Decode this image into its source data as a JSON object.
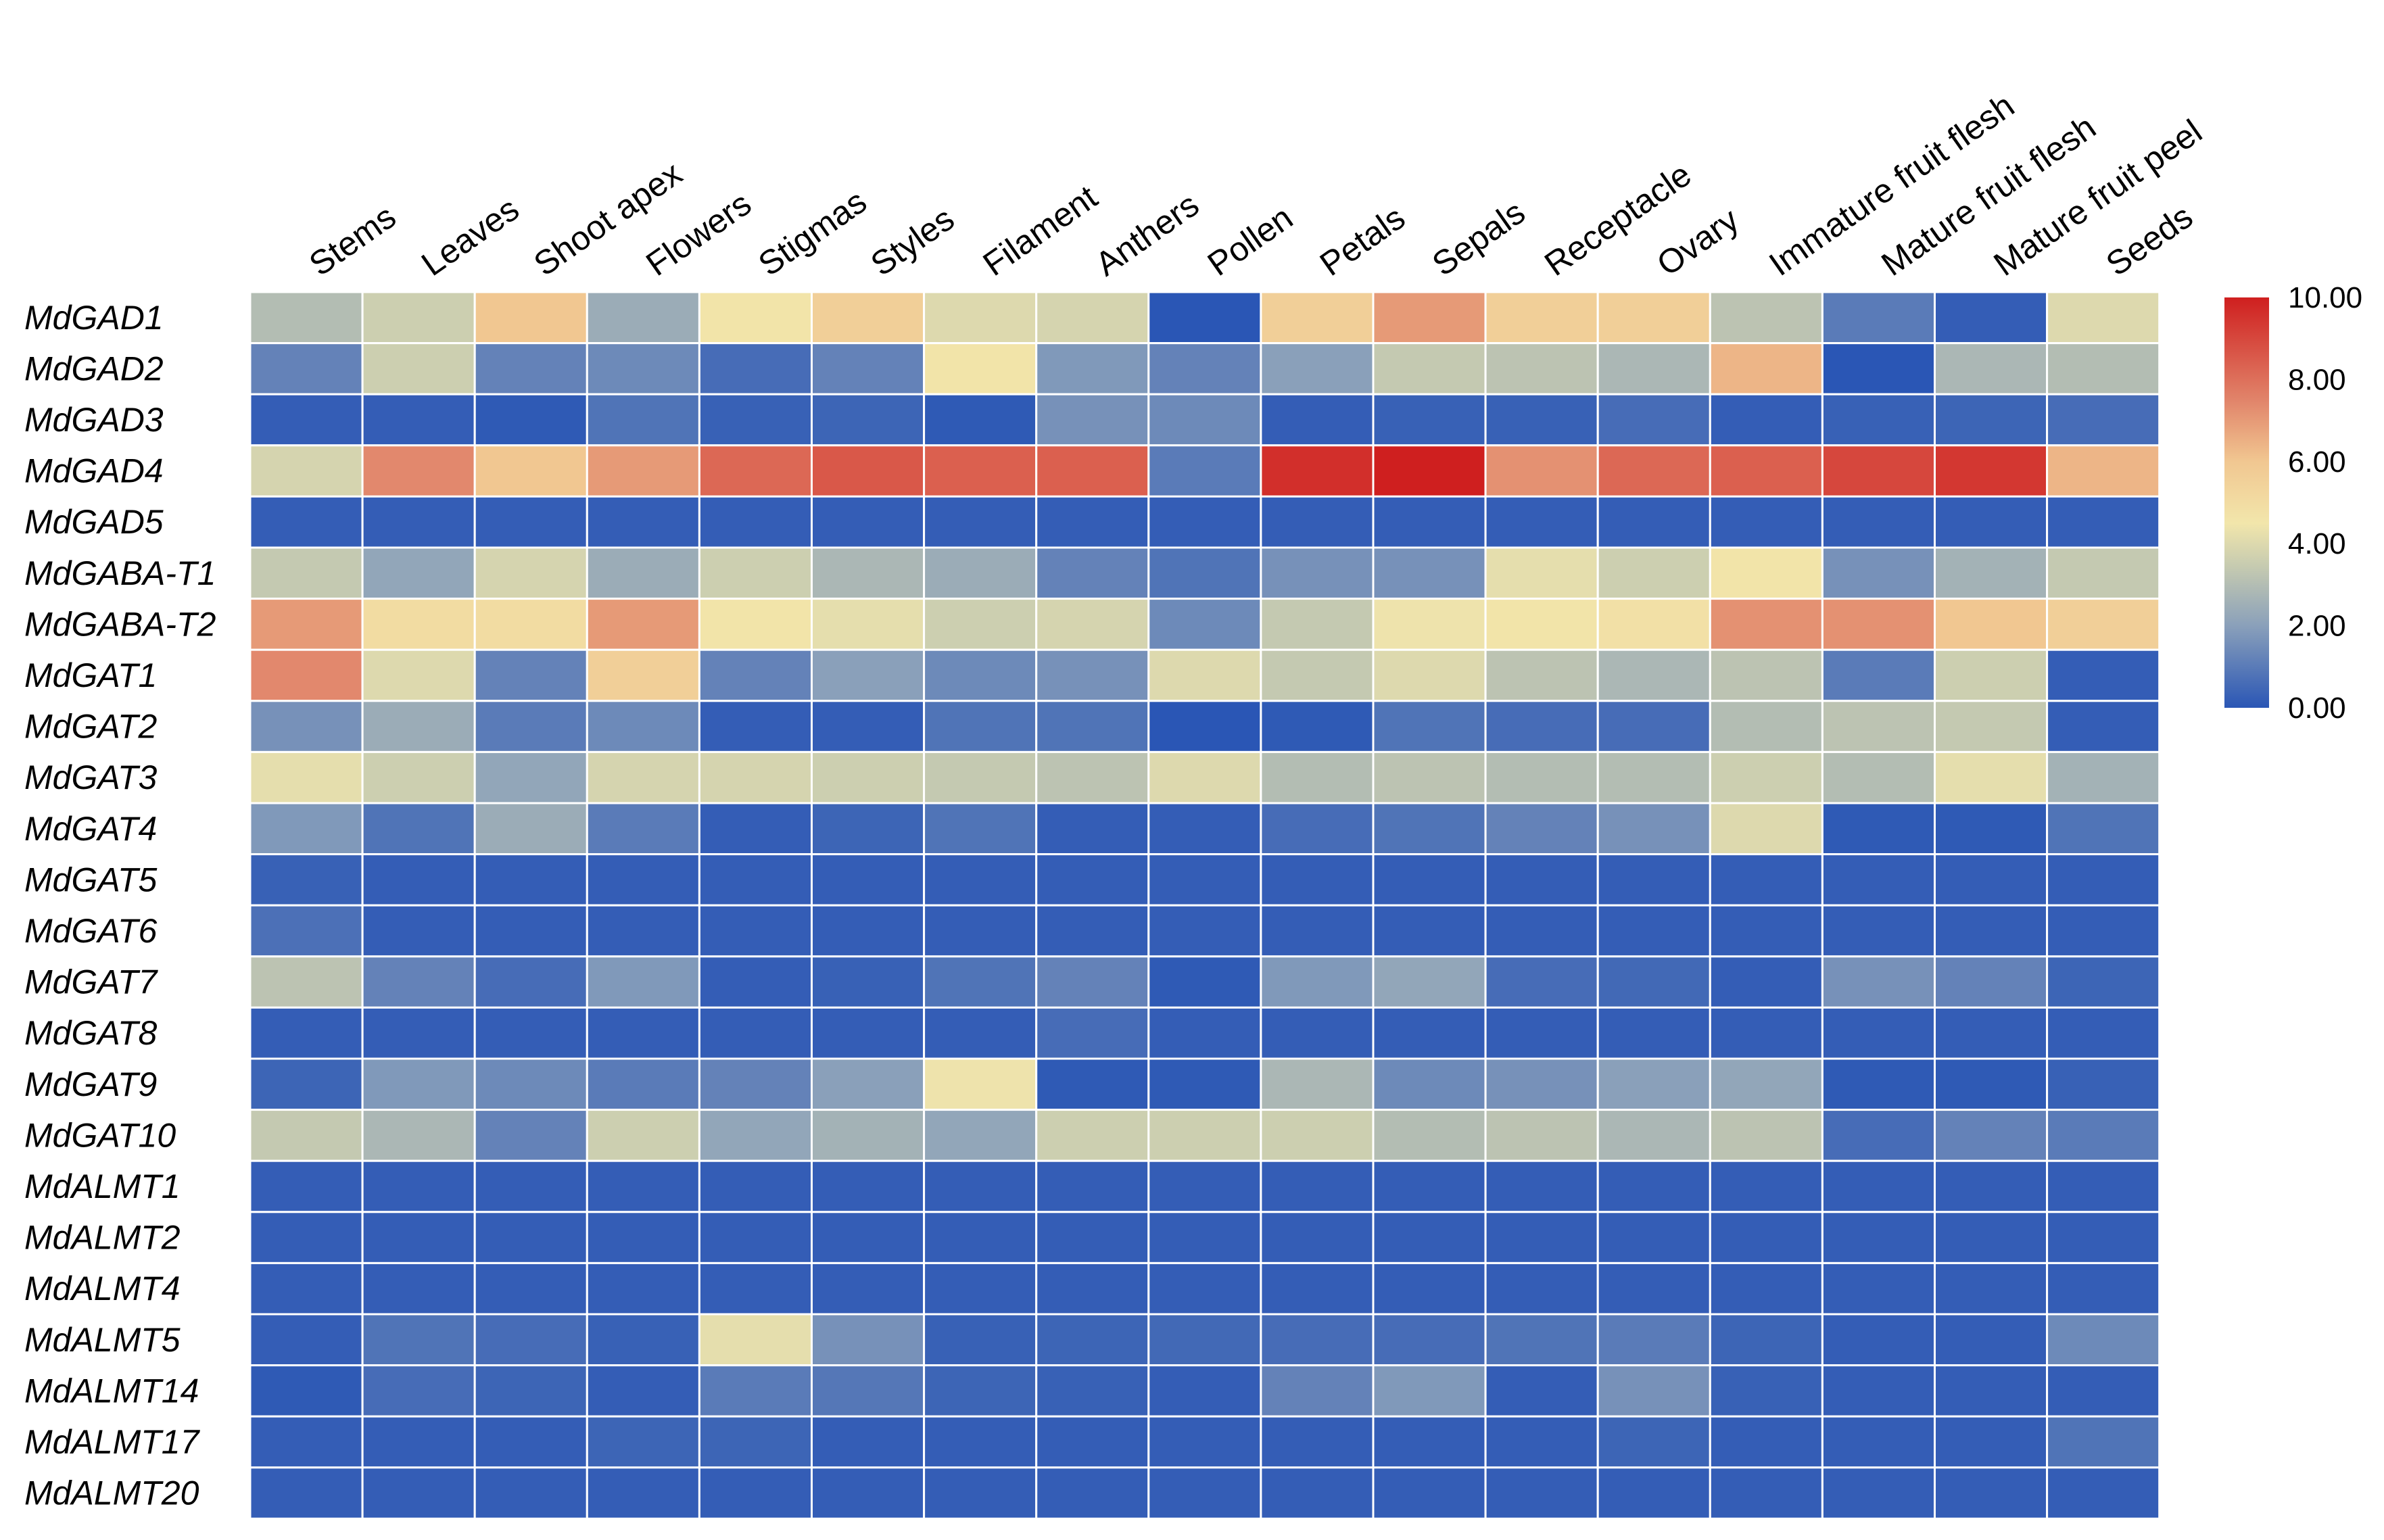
{
  "chart_data": {
    "type": "heatmap",
    "title": "",
    "xlabel": "",
    "ylabel": "",
    "columns": [
      "Stems",
      "Leaves",
      "Shoot apex",
      "Flowers",
      "Stigmas",
      "Styles",
      "Filament",
      "Anthers",
      "Pollen",
      "Petals",
      "Sepals",
      "Receptacle",
      "Ovary",
      "Immature fruit flesh",
      "Mature fruit flesh",
      "Mature fruit peel",
      "Seeds"
    ],
    "rows": [
      "MdGAD1",
      "MdGAD2",
      "MdGAD3",
      "MdGAD4",
      "MdGAD5",
      "MdGABA-T1",
      "MdGABA-T2",
      "MdGAT1",
      "MdGAT2",
      "MdGAT3",
      "MdGAT4",
      "MdGAT5",
      "MdGAT6",
      "MdGAT7",
      "MdGAT8",
      "MdGAT9",
      "MdGAT10",
      "MdALMT1",
      "MdALMT2",
      "MdALMT4",
      "MdALMT5",
      "MdALMT14",
      "MdALMT17",
      "MdALMT20"
    ],
    "values": [
      [
        3.0,
        3.6,
        6.0,
        2.4,
        4.6,
        5.6,
        4.0,
        3.8,
        0.0,
        5.6,
        7.0,
        5.6,
        5.6,
        3.2,
        1.0,
        0.2,
        4.0
      ],
      [
        1.2,
        3.6,
        1.2,
        1.4,
        0.6,
        1.2,
        4.6,
        1.8,
        1.2,
        2.0,
        3.4,
        3.2,
        2.8,
        6.4,
        0.0,
        2.8,
        3.0
      ],
      [
        0.2,
        0.2,
        0.1,
        0.8,
        0.3,
        0.4,
        0.1,
        1.6,
        1.4,
        0.2,
        0.3,
        0.3,
        0.6,
        0.2,
        0.3,
        0.4,
        0.6
      ],
      [
        3.8,
        7.4,
        6.0,
        7.0,
        8.2,
        8.6,
        8.4,
        8.4,
        1.0,
        9.6,
        10.0,
        7.2,
        8.2,
        8.4,
        9.0,
        9.4,
        6.4
      ],
      [
        0.2,
        0.2,
        0.2,
        0.2,
        0.2,
        0.2,
        0.2,
        0.2,
        0.2,
        0.2,
        0.2,
        0.2,
        0.2,
        0.2,
        0.2,
        0.2,
        0.2
      ],
      [
        3.4,
        2.2,
        3.8,
        2.4,
        3.6,
        2.8,
        2.4,
        1.2,
        0.8,
        1.6,
        1.6,
        4.2,
        3.6,
        4.6,
        1.6,
        2.6,
        3.4
      ],
      [
        7.0,
        5.0,
        5.0,
        7.0,
        4.6,
        4.2,
        3.6,
        3.8,
        1.4,
        3.4,
        4.4,
        4.6,
        4.8,
        7.2,
        7.2,
        6.0,
        5.6
      ],
      [
        7.4,
        4.0,
        1.2,
        5.6,
        1.2,
        2.0,
        1.4,
        1.6,
        4.0,
        3.4,
        4.0,
        3.2,
        2.8,
        3.2,
        1.0,
        3.6,
        0.2
      ],
      [
        1.6,
        2.4,
        1.0,
        1.4,
        0.2,
        0.2,
        0.8,
        0.8,
        0.0,
        0.1,
        0.8,
        0.6,
        0.6,
        3.0,
        3.2,
        3.4,
        0.2
      ],
      [
        4.2,
        3.6,
        2.2,
        3.8,
        3.8,
        3.6,
        3.4,
        3.2,
        4.0,
        3.0,
        3.2,
        3.0,
        3.0,
        3.6,
        3.0,
        4.2,
        2.6
      ],
      [
        1.8,
        0.8,
        2.4,
        1.0,
        0.2,
        0.4,
        0.8,
        0.2,
        0.2,
        0.6,
        0.8,
        1.2,
        1.6,
        4.0,
        0.1,
        0.1,
        0.8
      ],
      [
        0.3,
        0.2,
        0.2,
        0.2,
        0.2,
        0.2,
        0.2,
        0.2,
        0.2,
        0.2,
        0.2,
        0.2,
        0.2,
        0.2,
        0.2,
        0.2,
        0.2
      ],
      [
        0.7,
        0.2,
        0.2,
        0.2,
        0.2,
        0.2,
        0.2,
        0.2,
        0.2,
        0.2,
        0.2,
        0.2,
        0.2,
        0.2,
        0.2,
        0.2,
        0.2
      ],
      [
        3.2,
        1.2,
        0.6,
        1.8,
        0.2,
        0.3,
        0.8,
        1.2,
        0.1,
        1.8,
        2.2,
        0.6,
        0.5,
        0.2,
        1.6,
        1.2,
        0.4
      ],
      [
        0.2,
        0.2,
        0.2,
        0.2,
        0.2,
        0.2,
        0.2,
        0.6,
        0.2,
        0.2,
        0.2,
        0.2,
        0.2,
        0.2,
        0.2,
        0.2,
        0.2
      ],
      [
        0.4,
        1.8,
        1.4,
        1.0,
        1.2,
        2.0,
        4.4,
        0.1,
        0.1,
        2.8,
        1.4,
        1.6,
        2.0,
        2.2,
        0.1,
        0.1,
        0.3
      ],
      [
        3.4,
        2.8,
        1.2,
        3.6,
        2.2,
        2.6,
        2.2,
        3.6,
        3.6,
        3.6,
        3.0,
        3.2,
        2.8,
        3.2,
        0.6,
        1.2,
        1.0
      ],
      [
        0.2,
        0.2,
        0.2,
        0.2,
        0.2,
        0.2,
        0.2,
        0.2,
        0.2,
        0.2,
        0.2,
        0.2,
        0.2,
        0.2,
        0.2,
        0.2,
        0.2
      ],
      [
        0.2,
        0.2,
        0.2,
        0.2,
        0.2,
        0.2,
        0.2,
        0.2,
        0.2,
        0.2,
        0.2,
        0.2,
        0.2,
        0.2,
        0.2,
        0.2,
        0.2
      ],
      [
        0.2,
        0.2,
        0.2,
        0.2,
        0.2,
        0.2,
        0.2,
        0.2,
        0.2,
        0.2,
        0.2,
        0.2,
        0.2,
        0.2,
        0.2,
        0.2,
        0.2
      ],
      [
        0.2,
        0.8,
        0.6,
        0.3,
        4.2,
        1.6,
        0.3,
        0.4,
        0.5,
        0.6,
        0.6,
        0.8,
        1.0,
        0.4,
        0.2,
        0.2,
        1.4
      ],
      [
        0.1,
        0.6,
        0.4,
        0.2,
        1.0,
        0.9,
        0.4,
        0.3,
        0.2,
        1.2,
        1.8,
        0.2,
        1.6,
        0.3,
        0.2,
        0.2,
        0.2
      ],
      [
        0.2,
        0.2,
        0.2,
        0.4,
        0.4,
        0.2,
        0.2,
        0.2,
        0.2,
        0.2,
        0.2,
        0.2,
        0.4,
        0.2,
        0.2,
        0.2,
        0.8
      ],
      [
        0.2,
        0.2,
        0.2,
        0.2,
        0.2,
        0.2,
        0.2,
        0.2,
        0.2,
        0.2,
        0.2,
        0.2,
        0.2,
        0.2,
        0.2,
        0.2,
        0.2
      ]
    ],
    "color_scale": {
      "min": 0,
      "max": 10,
      "stops": [
        {
          "value": 0,
          "color": "#2a56b5"
        },
        {
          "value": 2,
          "color": "#8aa0ba"
        },
        {
          "value": 3.5,
          "color": "#c8ccb0"
        },
        {
          "value": 4.5,
          "color": "#f2e6ab"
        },
        {
          "value": 6,
          "color": "#f1c791"
        },
        {
          "value": 7.5,
          "color": "#e1846a"
        },
        {
          "value": 10,
          "color": "#cf1f1f"
        }
      ],
      "ticks": [
        0,
        2,
        4,
        6,
        8,
        10
      ],
      "tick_labels": [
        "0.00",
        "2.00",
        "4.00",
        "6.00",
        "8.00",
        "10.00"
      ]
    },
    "grid": true,
    "legend": "right"
  }
}
